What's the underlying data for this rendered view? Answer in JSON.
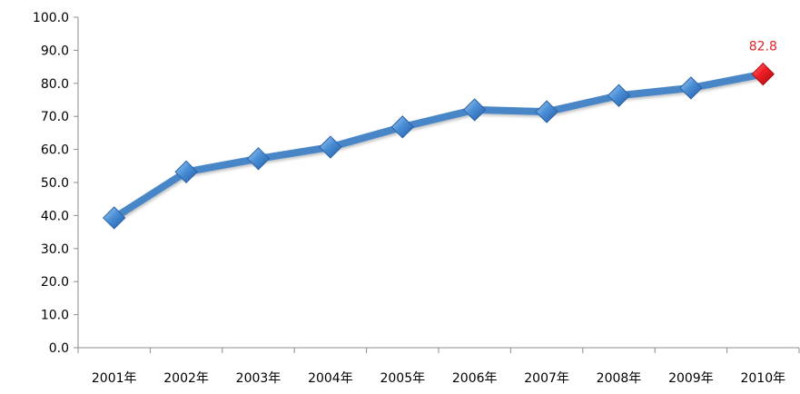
{
  "chart_data": {
    "type": "line",
    "title": "",
    "xlabel": "",
    "ylabel": "",
    "categories": [
      "2001年",
      "2002年",
      "2003年",
      "2004年",
      "2005年",
      "2006年",
      "2007年",
      "2008年",
      "2009年",
      "2010年"
    ],
    "series": [
      {
        "values": [
          39.3,
          53.2,
          57.2,
          60.7,
          66.8,
          72.0,
          71.4,
          76.3,
          78.6,
          82.8
        ],
        "color": "#4a86c8",
        "marker_color": "#3a7fcf"
      }
    ],
    "ylim": [
      0,
      100
    ],
    "yticks": [
      "0.0",
      "10.0",
      "20.0",
      "30.0",
      "40.0",
      "50.0",
      "60.0",
      "70.0",
      "80.0",
      "90.0",
      "100.0"
    ],
    "grid": false,
    "legend": "none",
    "annotations": [
      {
        "category_index": 9,
        "text": "82.8",
        "color": "#e8212a"
      }
    ],
    "highlight_marker_color": "#ee1c24"
  }
}
